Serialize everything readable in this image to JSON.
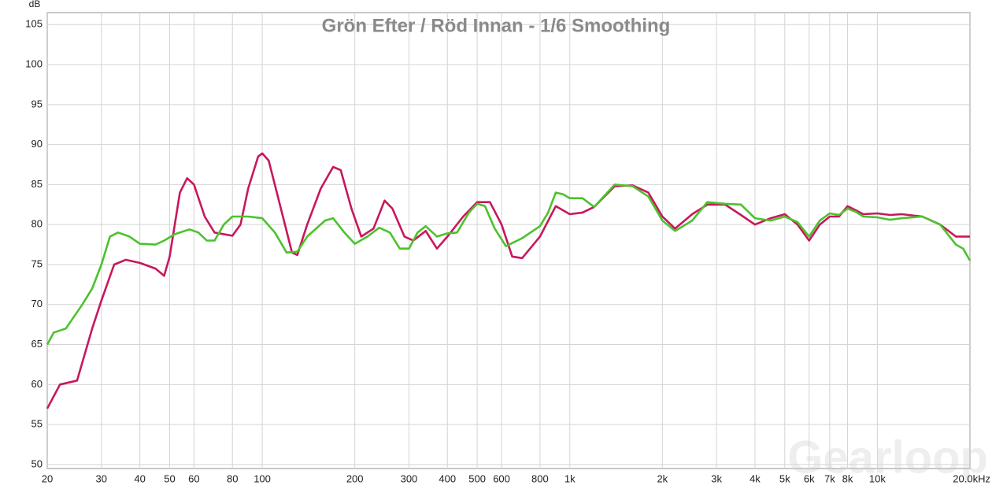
{
  "chart_data": {
    "type": "line",
    "title": "Grön Efter / Röd Innan - 1/6 Smoothing",
    "y_label": "dB",
    "watermark": "Gearloop",
    "log_x": true,
    "grid": true,
    "xlim": [
      20,
      20000
    ],
    "ylim": [
      49.5,
      106.5
    ],
    "yticks": [
      50,
      55,
      60,
      65,
      70,
      75,
      80,
      85,
      90,
      95,
      100,
      105
    ],
    "xticks": [
      20,
      30,
      40,
      50,
      60,
      80,
      100,
      200,
      300,
      400,
      500,
      600,
      800,
      {
        "value": 1000,
        "label": "1k"
      },
      {
        "value": 2000,
        "label": "2k"
      },
      {
        "value": 3000,
        "label": "3k"
      },
      {
        "value": 4000,
        "label": "4k"
      },
      {
        "value": 5000,
        "label": "5k"
      },
      {
        "value": 6000,
        "label": "6k"
      },
      {
        "value": 7000,
        "label": "7k"
      },
      {
        "value": 8000,
        "label": "8k"
      },
      {
        "value": 10000,
        "label": "10k"
      },
      {
        "value": 20000,
        "label": "20.0kHz"
      }
    ],
    "series": [
      {
        "color": "#c8175d",
        "x": [
          20,
          22,
          25,
          28,
          30,
          33,
          36,
          40,
          45,
          48,
          50,
          54,
          57,
          60,
          65,
          70,
          80,
          85,
          90,
          97,
          100,
          105,
          115,
          125,
          130,
          140,
          155,
          170,
          180,
          195,
          210,
          230,
          250,
          265,
          290,
          310,
          340,
          370,
          400,
          450,
          500,
          550,
          600,
          650,
          700,
          800,
          900,
          1000,
          1100,
          1200,
          1400,
          1600,
          1800,
          2000,
          2200,
          2500,
          2800,
          3200,
          3600,
          4000,
          4500,
          5000,
          5500,
          6000,
          6500,
          7000,
          7500,
          8000,
          8500,
          9000,
          10000,
          11000,
          12000,
          14000,
          16000,
          18000,
          20000
        ],
        "values": [
          57,
          60,
          60.5,
          67,
          70.5,
          75,
          75.6,
          75.2,
          74.5,
          73.6,
          76,
          84,
          85.8,
          85,
          81,
          79,
          78.6,
          80,
          84.5,
          88.5,
          88.9,
          88,
          82,
          76.5,
          76.2,
          80,
          84.5,
          87.2,
          86.8,
          82,
          78.5,
          79.5,
          83,
          82,
          78.5,
          78,
          79.2,
          77,
          78.5,
          81,
          82.8,
          82.8,
          80,
          76,
          75.8,
          78.5,
          82.3,
          81.3,
          81.5,
          82.2,
          84.8,
          84.9,
          84,
          81,
          79.5,
          81.3,
          82.5,
          82.5,
          81.2,
          80,
          80.8,
          81.3,
          80,
          78,
          80,
          81,
          81,
          82.3,
          81.8,
          81.3,
          81.4,
          81.2,
          81.3,
          81,
          80,
          78.5,
          78.5
        ]
      },
      {
        "color": "#4cc22c",
        "x": [
          20,
          21,
          23,
          26,
          28,
          30,
          32,
          34,
          37,
          40,
          45,
          48,
          52,
          58,
          62,
          66,
          70,
          75,
          80,
          90,
          100,
          110,
          120,
          130,
          140,
          160,
          170,
          185,
          200,
          220,
          240,
          260,
          280,
          300,
          320,
          340,
          370,
          400,
          430,
          470,
          500,
          530,
          570,
          620,
          700,
          800,
          850,
          900,
          950,
          1000,
          1100,
          1200,
          1400,
          1600,
          1800,
          2000,
          2200,
          2500,
          2800,
          3200,
          3600,
          4000,
          4500,
          5000,
          5500,
          6000,
          6500,
          7000,
          7500,
          8000,
          8500,
          9000,
          10000,
          11000,
          12000,
          14000,
          16000,
          18000,
          19000,
          20000
        ],
        "values": [
          65,
          66.5,
          67,
          70,
          72,
          75,
          78.5,
          79,
          78.5,
          77.6,
          77.5,
          78,
          78.8,
          79.4,
          79,
          78,
          78,
          80,
          81,
          81,
          80.8,
          79,
          76.5,
          76.6,
          78.5,
          80.5,
          80.8,
          79,
          77.6,
          78.5,
          79.6,
          79,
          77,
          77,
          79,
          79.8,
          78.5,
          78.9,
          79,
          81.5,
          82.6,
          82.3,
          79.5,
          77.3,
          78.3,
          79.8,
          81.5,
          84,
          83.8,
          83.3,
          83.3,
          82.2,
          85,
          84.8,
          83.5,
          80.5,
          79.2,
          80.5,
          82.8,
          82.6,
          82.5,
          80.8,
          80.5,
          81,
          80.3,
          78.5,
          80.5,
          81.4,
          81.2,
          82,
          81.6,
          81,
          80.9,
          80.6,
          80.8,
          81,
          80,
          77.5,
          77,
          75.5
        ]
      }
    ]
  }
}
